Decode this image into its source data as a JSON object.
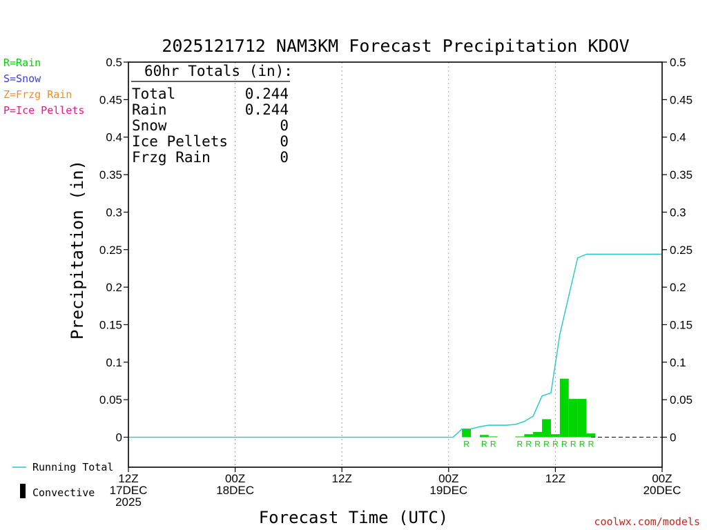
{
  "colors": {
    "rain": "#00d600",
    "snow": "#3a3af0",
    "frzg_rain": "#f08c28",
    "ice_pellets": "#e8158c",
    "running_total": "#1ec8c8",
    "convective": "#000000",
    "credit": "#d21e1e",
    "grid": "#a0a0a0"
  },
  "type_legend": [
    {
      "label": "R=Rain",
      "color_key": "rain"
    },
    {
      "label": "S=Snow",
      "color_key": "snow"
    },
    {
      "label": "Z=Frzg Rain",
      "color_key": "frzg_rain"
    },
    {
      "label": "P=Ice Pellets",
      "color_key": "ice_pellets"
    }
  ],
  "bottom_legend": {
    "running_total": "Running Total",
    "convective": "Convective"
  },
  "totals_box": {
    "header": "60hr Totals (in):",
    "rows": [
      {
        "label": "Total",
        "value": "0.244"
      },
      {
        "label": "Rain",
        "value": "0.244"
      },
      {
        "label": "Snow",
        "value": "0"
      },
      {
        "label": "Ice Pellets",
        "value": "0"
      },
      {
        "label": "Frzg Rain",
        "value": "0"
      }
    ]
  },
  "credit": "coolwx.com/models",
  "chart_data": {
    "type": "bar",
    "title": "2025121712 NAM3KM Forecast Precipitation KDOV",
    "xlabel": "Forecast Time (UTC)",
    "ylabel": "Precipitation (in)",
    "x_unit": "forecast hour",
    "xlim": [
      0,
      60
    ],
    "ylim": [
      -0.04,
      0.5
    ],
    "yticks": [
      0,
      0.05,
      0.1,
      0.15,
      0.2,
      0.25,
      0.3,
      0.35,
      0.4,
      0.45,
      0.5
    ],
    "ytick_labels": [
      "0",
      "0.05",
      "0.1",
      "0.15",
      "0.2",
      "0.25",
      "0.3",
      "0.35",
      "0.4",
      "0.45",
      "0.5"
    ],
    "xticks": [
      {
        "hour": 0,
        "lines": [
          "12Z",
          "17DEC",
          "2025"
        ]
      },
      {
        "hour": 12,
        "lines": [
          "00Z",
          "18DEC"
        ]
      },
      {
        "hour": 24,
        "lines": [
          "12Z"
        ]
      },
      {
        "hour": 36,
        "lines": [
          "00Z",
          "19DEC"
        ]
      },
      {
        "hour": 48,
        "lines": [
          "12Z"
        ]
      },
      {
        "hour": 60,
        "lines": [
          "00Z",
          "20DEC"
        ]
      }
    ],
    "grid": true,
    "hourly_precip": [
      {
        "hour": 38,
        "value": 0.011,
        "type": "R"
      },
      {
        "hour": 40,
        "value": 0.003,
        "type": "R"
      },
      {
        "hour": 41,
        "value": 0.001,
        "type": "R"
      },
      {
        "hour": 44,
        "value": 0.001,
        "type": "R"
      },
      {
        "hour": 45,
        "value": 0.004,
        "type": "R"
      },
      {
        "hour": 46,
        "value": 0.007,
        "type": "R"
      },
      {
        "hour": 47,
        "value": 0.024,
        "type": "R"
      },
      {
        "hour": 48,
        "value": 0.004,
        "type": "R"
      },
      {
        "hour": 49,
        "value": 0.078,
        "type": "R"
      },
      {
        "hour": 50,
        "value": 0.051,
        "type": "R"
      },
      {
        "hour": 51,
        "value": 0.051,
        "type": "R"
      },
      {
        "hour": 52,
        "value": 0.005,
        "type": "R"
      }
    ],
    "running_total": [
      [
        0,
        0
      ],
      [
        36.5,
        0
      ],
      [
        37.5,
        0.011
      ],
      [
        38.5,
        0.011
      ],
      [
        39.5,
        0.014
      ],
      [
        40.5,
        0.016
      ],
      [
        41.5,
        0.016
      ],
      [
        42.5,
        0.016
      ],
      [
        43.5,
        0.017
      ],
      [
        44.5,
        0.021
      ],
      [
        45.5,
        0.028
      ],
      [
        46.5,
        0.055
      ],
      [
        47.5,
        0.059
      ],
      [
        48.5,
        0.137
      ],
      [
        49.5,
        0.188
      ],
      [
        50.5,
        0.239
      ],
      [
        51.5,
        0.244
      ],
      [
        60,
        0.244
      ]
    ],
    "baseline_dashed_from_hour": 52,
    "series": [
      {
        "name": "Running Total",
        "color_key": "running_total"
      }
    ]
  }
}
